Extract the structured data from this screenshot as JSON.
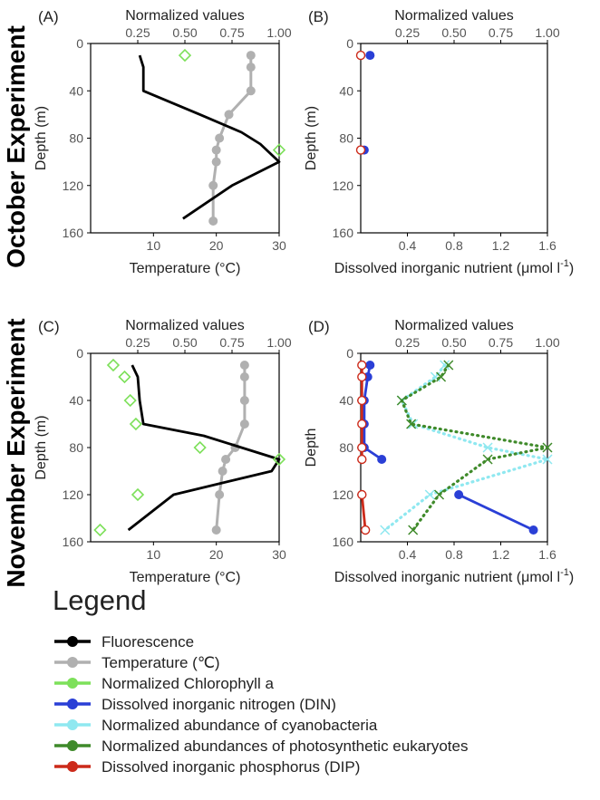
{
  "row_labels": [
    "October Experiment",
    "November Experiment"
  ],
  "legend": {
    "title": "Legend",
    "entries": [
      {
        "label": "Fluorescence",
        "color": "#000000"
      },
      {
        "label": "Temperature (℃)",
        "color": "#b0b0b0"
      },
      {
        "label": "Normalized Chlorophyll a",
        "color": "#7de05a"
      },
      {
        "label": "Dissolved inorganic nitrogen (DIN)",
        "color": "#2a3fd6"
      },
      {
        "label": "Normalized abundance of cyanobacteria",
        "color": "#8fe8f0"
      },
      {
        "label": "Normalized abundances of photosynthetic eukaryotes",
        "color": "#3f8a2a"
      },
      {
        "label": "Dissolved inorganic phosphorus (DIP)",
        "color": "#cc2a1a"
      }
    ]
  },
  "colors": {
    "fluorescence": "#000000",
    "temperature": "#b0b0b0",
    "chlorophyll": "#7de05a",
    "din": "#2a3fd6",
    "dip": "#cc2a1a",
    "cyano": "#8fe8f0",
    "euk": "#3f8a2a"
  },
  "chart_data": [
    {
      "panel": "(A)",
      "type": "line",
      "top_axis": {
        "label": "Normalized values",
        "range": [
          0,
          1
        ],
        "ticks": [
          "0.25",
          "0.50",
          "0.75",
          "1.00"
        ]
      },
      "bottom_axis": {
        "label": "Temperature (°C)",
        "range": [
          0,
          30
        ],
        "ticks": [
          "10",
          "20",
          "30"
        ]
      },
      "y_axis": {
        "label": "Depth (m)",
        "range": [
          0,
          160
        ],
        "ticks": [
          "0",
          "40",
          "80",
          "120",
          "160"
        ],
        "inverted": true
      },
      "series": [
        {
          "name": "Temperature",
          "axis": "bottom",
          "style": "line+circle",
          "x": [
            25.5,
            25.5,
            25.5,
            22,
            20.5,
            20,
            20,
            19.5,
            19.5
          ],
          "y": [
            10,
            20,
            40,
            60,
            80,
            90,
            100,
            120,
            150
          ]
        },
        {
          "name": "Fluorescence",
          "axis": "top",
          "style": "line",
          "x": [
            0.26,
            0.28,
            0.28,
            0.58,
            0.8,
            0.9,
            1.0,
            0.75,
            0.49
          ],
          "y": [
            10,
            20,
            40,
            60,
            75,
            85,
            100,
            120,
            148
          ]
        },
        {
          "name": "Normalized Chlorophyll a",
          "axis": "top",
          "style": "diamond",
          "x": [
            0.5,
            1.0
          ],
          "y": [
            10,
            90
          ]
        }
      ]
    },
    {
      "panel": "(B)",
      "type": "line",
      "top_axis": {
        "label": "Normalized values",
        "range": [
          0,
          1
        ],
        "ticks": [
          "0.25",
          "0.50",
          "0.75",
          "1.00"
        ]
      },
      "bottom_axis": {
        "label": "Dissolved inorganic nutrient (μmol l",
        "superscript": "-1",
        "close": ")",
        "range": [
          0,
          1.6
        ],
        "ticks": [
          "0.4",
          "0.8",
          "1.2",
          "1.6"
        ]
      },
      "y_axis": {
        "label": "Depth (m)",
        "range": [
          0,
          160
        ],
        "ticks": [
          "0",
          "40",
          "80",
          "120",
          "160"
        ],
        "inverted": true
      },
      "series": [
        {
          "name": "DIN",
          "axis": "bottom",
          "style": "circle",
          "x": [
            0.08,
            0.03
          ],
          "y": [
            10,
            90
          ]
        },
        {
          "name": "DIP",
          "axis": "bottom",
          "style": "open-circle",
          "x": [
            0.0,
            0.0
          ],
          "y": [
            10,
            90
          ]
        }
      ]
    },
    {
      "panel": "(C)",
      "type": "line",
      "top_axis": {
        "label": "Normalized values",
        "range": [
          0,
          1
        ],
        "ticks": [
          "0.25",
          "0.50",
          "0.75",
          "1.00"
        ]
      },
      "bottom_axis": {
        "label": "Temperature (°C)",
        "range": [
          0,
          30
        ],
        "ticks": [
          "10",
          "20",
          "30"
        ]
      },
      "y_axis": {
        "label": "Depth (m)",
        "range": [
          0,
          160
        ],
        "ticks": [
          "0",
          "40",
          "80",
          "120",
          "160"
        ],
        "inverted": true
      },
      "series": [
        {
          "name": "Temperature",
          "axis": "bottom",
          "style": "line+circle",
          "x": [
            24.5,
            24.5,
            24.5,
            24.5,
            23,
            21.5,
            21,
            20.5,
            20
          ],
          "y": [
            10,
            20,
            40,
            60,
            80,
            90,
            100,
            120,
            150
          ]
        },
        {
          "name": "Fluorescence",
          "axis": "top",
          "style": "line",
          "x": [
            0.22,
            0.25,
            0.26,
            0.28,
            0.6,
            1.0,
            0.96,
            0.44,
            0.2
          ],
          "y": [
            10,
            20,
            40,
            60,
            70,
            90,
            100,
            120,
            150
          ]
        },
        {
          "name": "Normalized Chlorophyll a",
          "axis": "top",
          "style": "diamond",
          "x": [
            0.12,
            0.18,
            0.21,
            0.24,
            0.58,
            1.0,
            0.25,
            0.05
          ],
          "y": [
            10,
            20,
            40,
            60,
            80,
            90,
            120,
            150
          ]
        }
      ]
    },
    {
      "panel": "(D)",
      "type": "line",
      "top_axis": {
        "label": "Normalized values",
        "range": [
          0,
          1
        ],
        "ticks": [
          "0.25",
          "0.50",
          "0.75",
          "1.00"
        ]
      },
      "bottom_axis": {
        "label": "Dissolved inorganic nutrient (μmol l",
        "superscript": "-1",
        "close": ")",
        "range": [
          0,
          1.6
        ],
        "ticks": [
          "0.4",
          "0.8",
          "1.2",
          "1.6"
        ]
      },
      "y_axis": {
        "label": "Depth",
        "range": [
          0,
          160
        ],
        "ticks": [
          "0",
          "40",
          "80",
          "120",
          "160"
        ],
        "inverted": true
      },
      "series": [
        {
          "name": "DIN",
          "axis": "bottom",
          "style": "line+circle",
          "x": [
            0.08,
            0.06,
            0.03,
            0.03,
            0.03,
            0.18,
            null,
            0.84,
            1.48
          ],
          "y": [
            10,
            20,
            40,
            60,
            80,
            90,
            null,
            120,
            150
          ]
        },
        {
          "name": "DIP",
          "axis": "bottom",
          "style": "line+open-circle",
          "x": [
            0.01,
            0.01,
            0.01,
            0.01,
            0.01,
            0.01,
            null,
            0.01,
            0.04
          ],
          "y": [
            10,
            20,
            40,
            60,
            80,
            90,
            null,
            120,
            150
          ]
        },
        {
          "name": "Normalized abundance of cyanobacteria",
          "axis": "top",
          "style": "dotted+x",
          "x": [
            0.45,
            0.4,
            0.22,
            0.28,
            0.68,
            1.0,
            0.37,
            0.13
          ],
          "y": [
            10,
            20,
            40,
            60,
            80,
            90,
            120,
            150
          ]
        },
        {
          "name": "Normalized abundances of photosynthetic eukaryotes",
          "axis": "top",
          "style": "dotted+x",
          "x": [
            0.47,
            0.43,
            0.22,
            0.27,
            1.0,
            0.68,
            0.42,
            0.28
          ],
          "y": [
            10,
            20,
            40,
            60,
            80,
            90,
            120,
            150
          ]
        }
      ]
    }
  ]
}
